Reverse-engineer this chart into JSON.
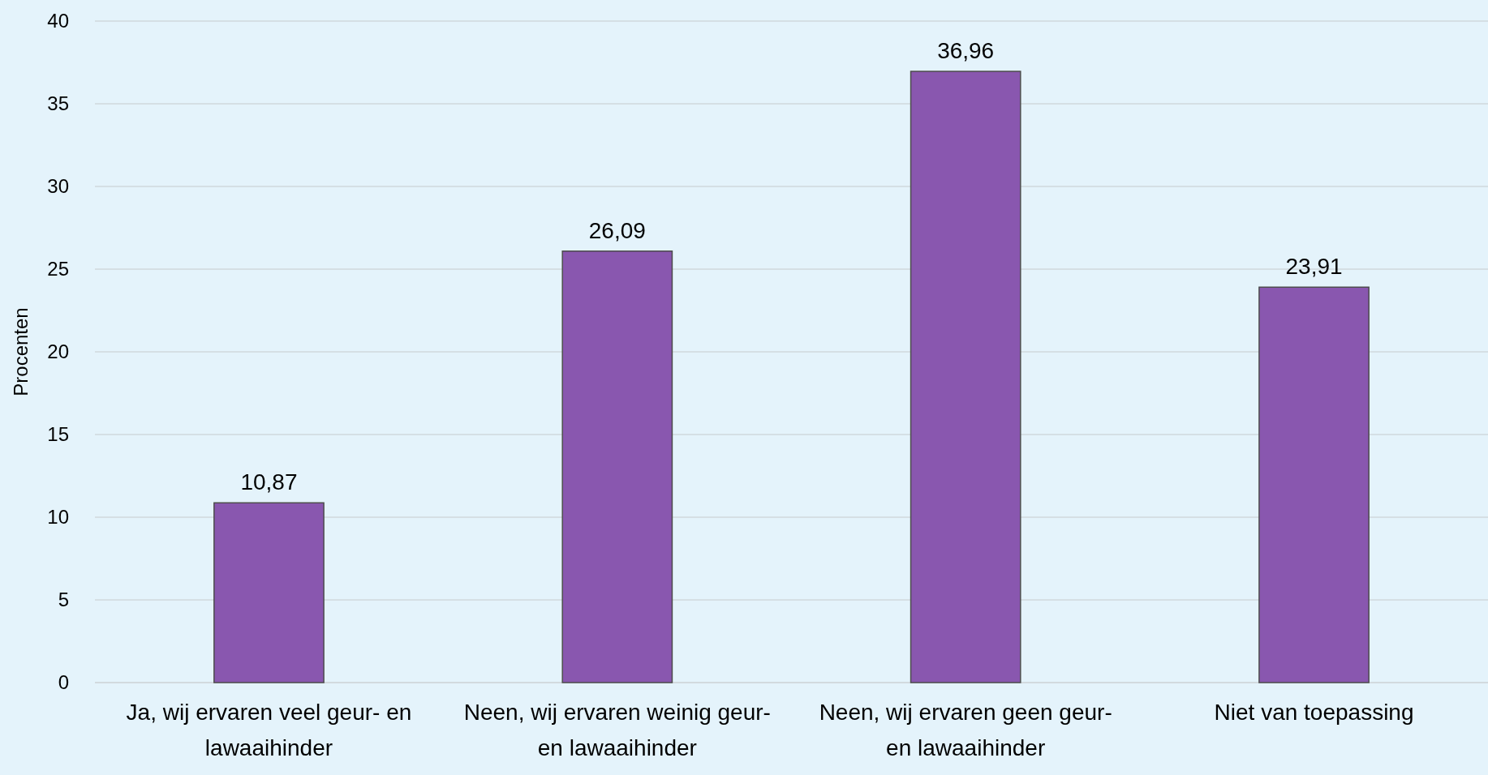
{
  "chart_data": {
    "type": "bar",
    "ylabel": "Procenten",
    "categories": [
      "Ja, wij ervaren veel geur- en lawaaihinder",
      "Neen, wij ervaren weinig geur- en lawaaihinder",
      "Neen, wij ervaren geen geur- en lawaaihinder",
      "Niet van toepassing"
    ],
    "values": [
      10.87,
      26.09,
      36.96,
      23.91
    ],
    "value_labels": [
      "10,87",
      "26,09",
      "36,96",
      "23,91"
    ],
    "color": "#8957af",
    "ylim": [
      0,
      40
    ],
    "yticks": [
      0,
      5,
      10,
      15,
      20,
      25,
      30,
      35,
      40
    ],
    "grid": "y"
  }
}
